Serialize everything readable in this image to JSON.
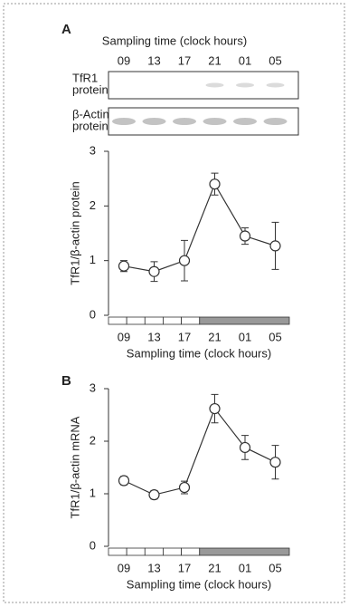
{
  "figure": {
    "blot": {
      "title": "Sampling time (clock hours)",
      "times": [
        "09",
        "13",
        "17",
        "21",
        "01",
        "05"
      ],
      "rows": [
        [
          "TfR1",
          "protein"
        ],
        [
          "β-Actin",
          "protein"
        ]
      ]
    }
  },
  "chart_data": [
    {
      "type": "line",
      "panel_label": "A",
      "x_label": "Sampling time (clock hours)",
      "y_label": "TfR1/β-actin protein",
      "categories": [
        "09",
        "13",
        "17",
        "21",
        "01",
        "05"
      ],
      "values": [
        0.9,
        0.8,
        1.0,
        2.4,
        1.45,
        1.27
      ],
      "errors": [
        0.1,
        0.18,
        0.37,
        0.2,
        0.15,
        0.43
      ],
      "ylim": [
        0,
        3
      ],
      "yticks": [
        0,
        1,
        2,
        3
      ],
      "color": "#333333"
    },
    {
      "type": "line",
      "panel_label": "B",
      "x_label": "Sampling time (clock hours)",
      "y_label": "TfR1/β-actin mRNA",
      "categories": [
        "09",
        "13",
        "17",
        "21",
        "01",
        "05"
      ],
      "values": [
        1.25,
        0.98,
        1.12,
        2.62,
        1.88,
        1.6
      ],
      "errors": [
        0.08,
        0.08,
        0.12,
        0.27,
        0.23,
        0.32
      ],
      "ylim": [
        0,
        3
      ],
      "yticks": [
        0,
        1,
        2,
        3
      ],
      "color": "#333333"
    }
  ]
}
